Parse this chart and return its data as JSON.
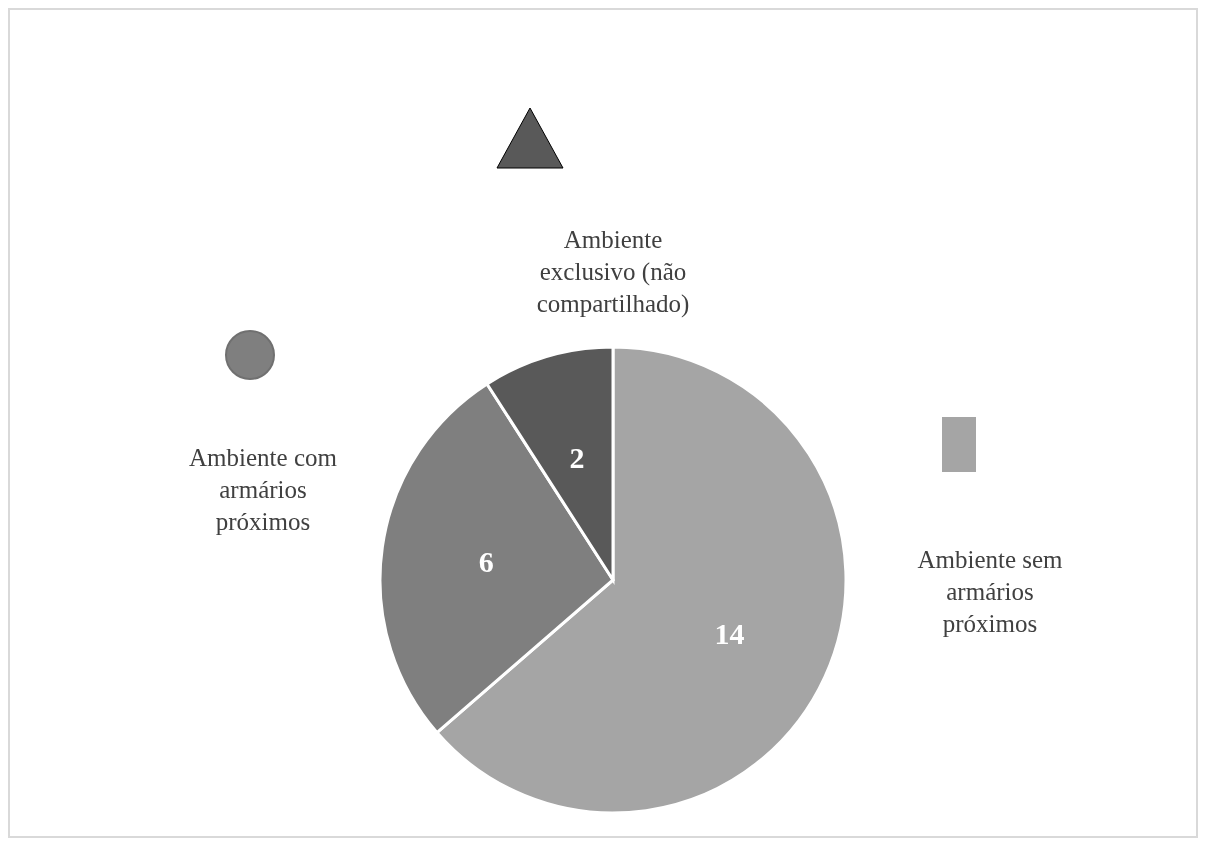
{
  "chart_data": {
    "type": "pie",
    "categories": [
      "Ambiente sem armários próximos",
      "Ambiente com armários próximos",
      "Ambiente exclusivo (não compartilhado)"
    ],
    "values": [
      14,
      6,
      2
    ],
    "colors": [
      "#a5a5a5",
      "#7f7f7f",
      "#595959"
    ],
    "data_labels": true
  }
}
